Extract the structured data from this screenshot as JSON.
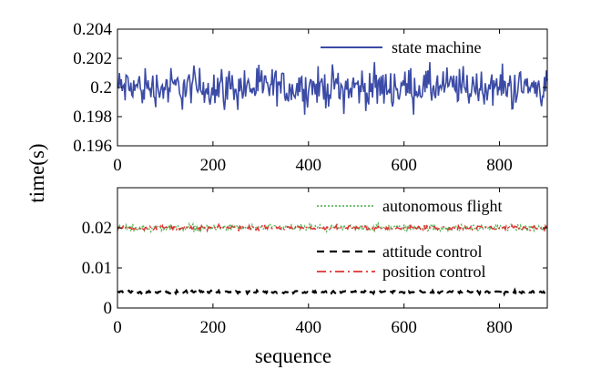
{
  "chart_data": [
    {
      "type": "line",
      "panel": "top",
      "title": "",
      "xlabel": "",
      "ylabel": "time(s)",
      "xlim": [
        0,
        900
      ],
      "ylim": [
        0.196,
        0.204
      ],
      "xticks": [
        0,
        200,
        400,
        600,
        800
      ],
      "xtick_labels": [
        "0",
        "200",
        "400",
        "600",
        "800"
      ],
      "yticks": [
        0.196,
        0.198,
        0.2,
        0.202,
        0.204
      ],
      "ytick_labels": [
        "0.196",
        "0.198",
        "0.2",
        "0.202",
        "0.204"
      ],
      "grid": false,
      "legend_position": "top-right",
      "series": [
        {
          "name": "state machine",
          "color": "#3b4ba6",
          "line_style": "solid",
          "x_range": [
            0,
            900
          ],
          "center": 0.2,
          "amplitude_range": [
            0.1976,
            0.2022
          ],
          "n_points": 900
        }
      ]
    },
    {
      "type": "line",
      "panel": "bottom",
      "title": "",
      "xlabel": "sequence",
      "ylabel": "time(s)",
      "xlim": [
        0,
        900
      ],
      "ylim": [
        0,
        0.03
      ],
      "xticks": [
        0,
        200,
        400,
        600,
        800
      ],
      "xtick_labels": [
        "0",
        "200",
        "400",
        "600",
        "800"
      ],
      "yticks": [
        0,
        0.01,
        0.02
      ],
      "ytick_labels": [
        "0",
        "0.01",
        "0.02"
      ],
      "grid": false,
      "legend_position": "right",
      "series": [
        {
          "name": "autonomous flight",
          "color": "#5cb85c",
          "line_style": "dotted",
          "x_range": [
            0,
            900
          ],
          "center": 0.02,
          "amplitude_range": [
            0.0185,
            0.0215
          ]
        },
        {
          "name": "attitude control",
          "color": "#000000",
          "line_style": "dashed",
          "x_range": [
            0,
            900
          ],
          "center": 0.004,
          "amplitude_range": [
            0.0035,
            0.0046
          ]
        },
        {
          "name": "position control",
          "color": "#e03030",
          "line_style": "dash-dot",
          "x_range": [
            0,
            900
          ],
          "center": 0.02,
          "amplitude_range": [
            0.019,
            0.021
          ]
        }
      ]
    }
  ],
  "ylabel_shared": "time(s)",
  "xlabel_shared": "sequence"
}
